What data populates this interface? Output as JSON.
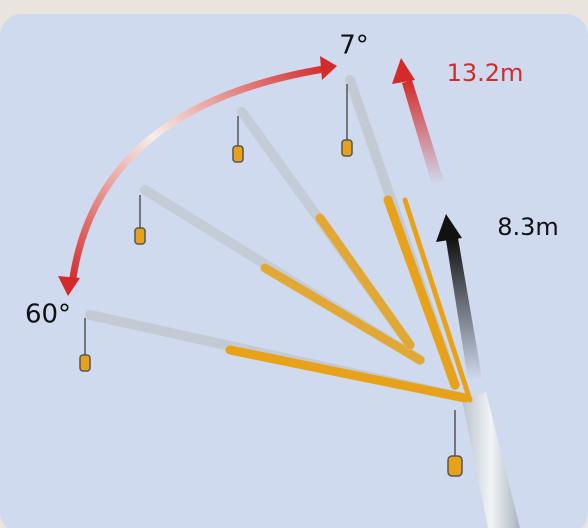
{
  "labels": {
    "angle_min": "7°",
    "extension_top": "13.2m",
    "angle_max": "60°",
    "extension_base": "8.3m"
  }
}
